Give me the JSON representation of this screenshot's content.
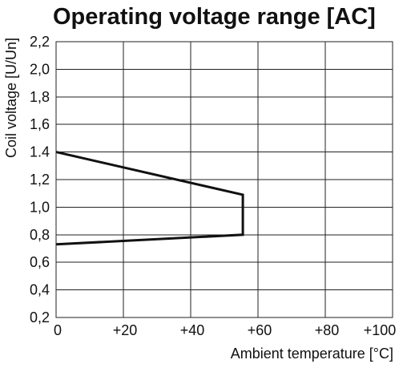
{
  "chart_data": {
    "type": "line",
    "title": "Operating voltage range [AC]",
    "xlabel": "Ambient temperature [°C]",
    "ylabel": "Coil voltage [U/Un]",
    "xlim": [
      0,
      100
    ],
    "ylim": [
      0.2,
      2.2
    ],
    "x_ticks": [
      {
        "value": 0,
        "label": "0"
      },
      {
        "value": 20,
        "label": "+20"
      },
      {
        "value": 40,
        "label": "+40"
      },
      {
        "value": 60,
        "label": "+60"
      },
      {
        "value": 80,
        "label": "+80"
      },
      {
        "value": 100,
        "label": "+100"
      }
    ],
    "y_ticks": [
      {
        "value": 0.2,
        "label": "0,2"
      },
      {
        "value": 0.4,
        "label": "0,4"
      },
      {
        "value": 0.6,
        "label": "0,6"
      },
      {
        "value": 0.8,
        "label": "0,8"
      },
      {
        "value": 1.0,
        "label": "1,0"
      },
      {
        "value": 1.2,
        "label": "1,2"
      },
      {
        "value": 1.4,
        "label": "1.4"
      },
      {
        "value": 1.6,
        "label": "1,6"
      },
      {
        "value": 1.8,
        "label": "1,8"
      },
      {
        "value": 2.0,
        "label": "2,0"
      },
      {
        "value": 2.2,
        "label": "2,2"
      }
    ],
    "grid": true,
    "legend": "none",
    "series": [
      {
        "color": "#111111",
        "points": [
          {
            "x": 0,
            "y": 1.4
          },
          {
            "x": 55.5,
            "y": 1.09
          },
          {
            "x": 55.5,
            "y": 0.8
          },
          {
            "x": 0,
            "y": 0.73
          }
        ]
      }
    ]
  }
}
